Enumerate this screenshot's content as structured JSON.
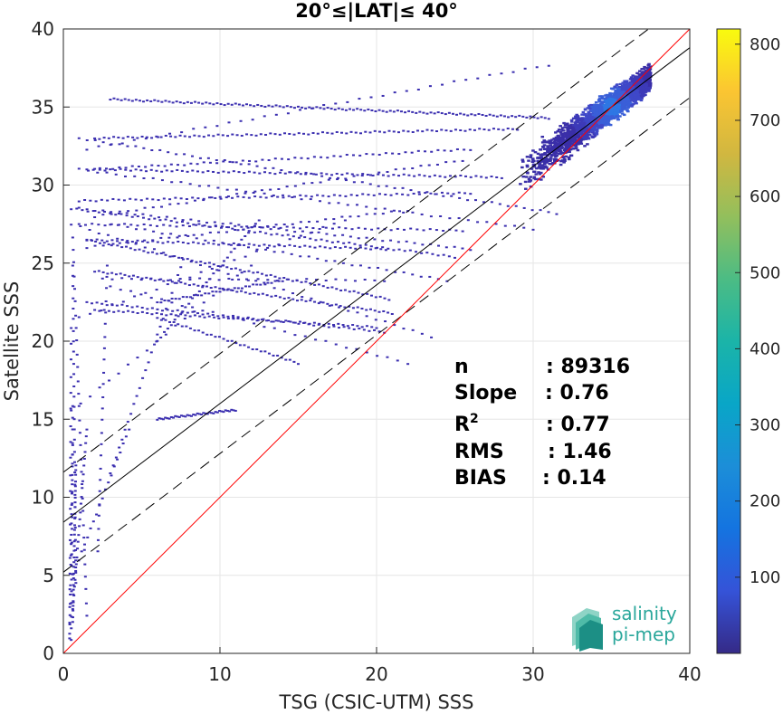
{
  "chart_data": {
    "type": "scatter",
    "title": "20°≤|LAT|≤ 40°",
    "xlabel": "TSG (CSIC-UTM) SSS",
    "ylabel": "Satellite SSS",
    "xlim": [
      0,
      40
    ],
    "ylim": [
      0,
      40
    ],
    "xticks": [
      0,
      10,
      20,
      30,
      40
    ],
    "yticks": [
      0,
      5,
      10,
      15,
      20,
      25,
      30,
      35,
      40
    ],
    "grid": true,
    "colorbar": {
      "ticks": [
        100,
        200,
        300,
        400,
        500,
        600,
        700,
        800
      ],
      "range": [
        0,
        820
      ],
      "colormap": "parula"
    },
    "lines": {
      "identity": {
        "slope": 1,
        "intercept": 0,
        "color": "#ff0000"
      },
      "fit": {
        "slope": 0.76,
        "intercept": 8.4,
        "color": "#000000"
      },
      "upper_bound": {
        "slope": 0.76,
        "intercept": 11.6,
        "style": "dashed"
      },
      "lower_bound": {
        "slope": 0.76,
        "intercept": 5.2,
        "style": "dashed"
      }
    },
    "stats": [
      {
        "label": "n",
        "value": ": 89316"
      },
      {
        "label": "Slope",
        "value": ": 0.76"
      },
      {
        "label": "R",
        "sup": "2",
        "value": ": 0.77"
      },
      {
        "label": "RMS",
        "value": ": 1.46"
      },
      {
        "label": "BIAS",
        "value": ": 0.14"
      }
    ],
    "streaks": [
      [
        0.6,
        26.7,
        1.5,
        2.4,
        30
      ],
      [
        0.6,
        24.9,
        0.8,
        4.5,
        30
      ],
      [
        2.8,
        24.9,
        2.2,
        6.5,
        25
      ],
      [
        7.5,
        24.8,
        3.0,
        11.5,
        25
      ],
      [
        12.0,
        24.9,
        0.5,
        15.5,
        20
      ],
      [
        12.5,
        27.8,
        6.0,
        20.0,
        30
      ],
      [
        18.0,
        27.8,
        1.0,
        21.5,
        25
      ],
      [
        14.0,
        23.9,
        6.0,
        22.5,
        35
      ],
      [
        20.5,
        23.9,
        2.5,
        24.0,
        30
      ],
      [
        24.5,
        23.9,
        3.0,
        27.5,
        40
      ],
      [
        15.0,
        18.6,
        6.0,
        21.5,
        35
      ],
      [
        22.0,
        18.6,
        3.0,
        23.5,
        30
      ],
      [
        11.0,
        15.6,
        6.0,
        15.0,
        40
      ],
      [
        20.5,
        20.6,
        1.5,
        22.5,
        60
      ],
      [
        21.0,
        21.8,
        2.0,
        24.5,
        70
      ],
      [
        20.0,
        20.9,
        2.0,
        22.0,
        60
      ],
      [
        23.5,
        20.3,
        0.5,
        27.5,
        40
      ],
      [
        20.8,
        22.7,
        1.5,
        26.5,
        70
      ],
      [
        20.6,
        25.9,
        1.5,
        26.5,
        60
      ],
      [
        25.0,
        25.4,
        0.5,
        28.5,
        70
      ],
      [
        26.0,
        25.9,
        1.0,
        28.5,
        50
      ],
      [
        22.0,
        28.4,
        1.5,
        26.0,
        40
      ],
      [
        25.5,
        27.1,
        1.0,
        27.5,
        60
      ],
      [
        26.0,
        29.5,
        1.0,
        29.0,
        70
      ],
      [
        25.5,
        31.6,
        2.0,
        28.0,
        45
      ],
      [
        26.0,
        32.3,
        1.5,
        31.0,
        60
      ],
      [
        28.0,
        30.5,
        2.0,
        31.0,
        80
      ],
      [
        29.0,
        33.6,
        2.0,
        33.0,
        90
      ],
      [
        31.0,
        34.3,
        3.0,
        35.5,
        120
      ],
      [
        30.0,
        27.2,
        1.0,
        31.0,
        50
      ],
      [
        31.5,
        28.2,
        1.0,
        33.0,
        60
      ],
      [
        31.0,
        37.7,
        1.5,
        32.3,
        40
      ],
      [
        0.6,
        15.9,
        0.5,
        0.8,
        20
      ],
      [
        0.5,
        20.9,
        0.4,
        0.9,
        20
      ],
      [
        0.6,
        13.4,
        0.4,
        1.2,
        20
      ],
      [
        0.8,
        12.1,
        0.6,
        2.0,
        30
      ],
      [
        1.5,
        14.4,
        0.6,
        2.8,
        25
      ],
      [
        4.2,
        14.4,
        0.6,
        5.0,
        20
      ]
    ],
    "cluster": {
      "x": [
        29,
        37.5
      ],
      "count": 2600
    }
  },
  "logo": {
    "line1": "salinity",
    "line2": "pi-mep"
  }
}
